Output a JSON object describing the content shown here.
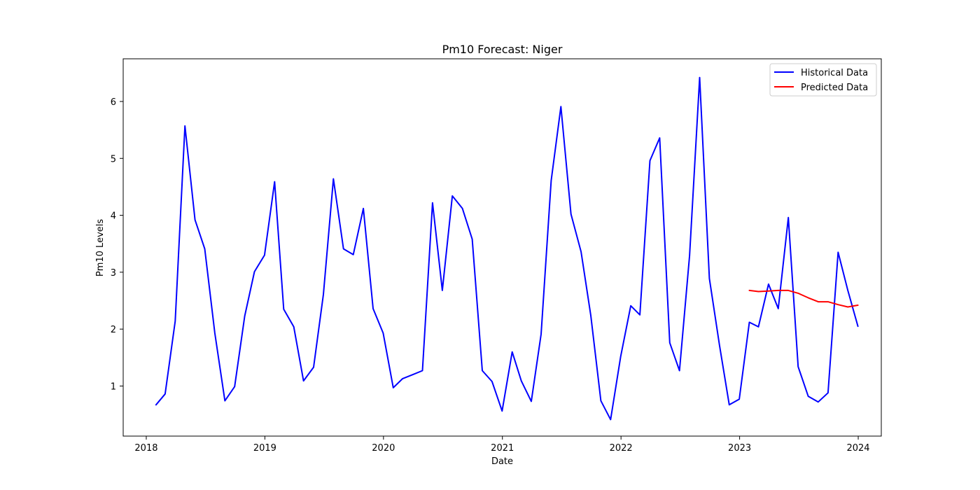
{
  "chart_data": {
    "type": "line",
    "title": "Pm10 Forecast: Niger",
    "xlabel": "Date",
    "ylabel": "Pm10 Levels",
    "xlim": [
      "2017-10-22",
      "2024-03-12"
    ],
    "ylim": [
      0.12,
      6.75
    ],
    "x_ticks": [
      "2018",
      "2019",
      "2020",
      "2021",
      "2022",
      "2023",
      "2024"
    ],
    "y_ticks": [
      "1",
      "2",
      "3",
      "4",
      "5",
      "6"
    ],
    "grid": false,
    "legend_position": "top-right",
    "series": [
      {
        "name": "Historical Data",
        "color": "#0000ff",
        "x": [
          "2018-01-31",
          "2018-02-28",
          "2018-03-31",
          "2018-04-30",
          "2018-05-31",
          "2018-06-30",
          "2018-07-31",
          "2018-08-31",
          "2018-09-30",
          "2018-10-31",
          "2018-11-30",
          "2018-12-31",
          "2019-01-31",
          "2019-02-28",
          "2019-03-31",
          "2019-04-30",
          "2019-05-31",
          "2019-06-30",
          "2019-07-31",
          "2019-08-31",
          "2019-09-30",
          "2019-10-31",
          "2019-11-30",
          "2019-12-31",
          "2020-01-31",
          "2020-02-29",
          "2020-03-31",
          "2020-04-30",
          "2020-05-31",
          "2020-06-30",
          "2020-07-31",
          "2020-08-31",
          "2020-09-30",
          "2020-10-31",
          "2020-11-30",
          "2020-12-31",
          "2021-01-31",
          "2021-02-28",
          "2021-03-31",
          "2021-04-30",
          "2021-05-31",
          "2021-06-30",
          "2021-07-31",
          "2021-08-31",
          "2021-09-30",
          "2021-10-31",
          "2021-11-30",
          "2021-12-31",
          "2022-01-31",
          "2022-02-28",
          "2022-03-31",
          "2022-04-30",
          "2022-05-31",
          "2022-06-30",
          "2022-07-31",
          "2022-08-31",
          "2022-09-30",
          "2022-10-31",
          "2022-11-30",
          "2022-12-31",
          "2023-01-31",
          "2023-02-28",
          "2023-03-31",
          "2023-04-30",
          "2023-05-31",
          "2023-06-30",
          "2023-07-31",
          "2023-08-31",
          "2023-09-30",
          "2023-10-31",
          "2023-11-30",
          "2023-12-31"
        ],
        "values": [
          0.67,
          0.86,
          2.14,
          5.57,
          3.92,
          3.41,
          1.93,
          0.74,
          0.99,
          2.23,
          3.01,
          3.3,
          4.59,
          2.35,
          2.04,
          1.09,
          1.33,
          2.61,
          4.64,
          3.41,
          3.31,
          4.12,
          2.36,
          1.93,
          0.97,
          1.13,
          1.2,
          1.27,
          4.22,
          2.68,
          4.34,
          4.12,
          3.58,
          1.27,
          1.08,
          0.56,
          1.6,
          1.09,
          0.73,
          1.91,
          4.61,
          5.91,
          4.02,
          3.36,
          2.24,
          0.74,
          0.41,
          1.52,
          2.41,
          2.25,
          4.96,
          5.36,
          1.76,
          1.27,
          3.29,
          6.42,
          2.89,
          1.72,
          0.67,
          0.77,
          2.12,
          2.04,
          2.79,
          2.36,
          3.96,
          1.34,
          0.82,
          0.72,
          0.88,
          3.35,
          2.68,
          2.05
        ]
      },
      {
        "name": "Predicted Data",
        "color": "#ff0000",
        "x": [
          "2023-01-31",
          "2023-02-28",
          "2023-03-31",
          "2023-04-30",
          "2023-05-31",
          "2023-06-30",
          "2023-07-31",
          "2023-08-31",
          "2023-09-30",
          "2023-10-31",
          "2023-11-30",
          "2023-12-31"
        ],
        "values": [
          2.68,
          2.66,
          2.67,
          2.68,
          2.68,
          2.63,
          2.55,
          2.48,
          2.48,
          2.43,
          2.39,
          2.42
        ]
      }
    ]
  }
}
